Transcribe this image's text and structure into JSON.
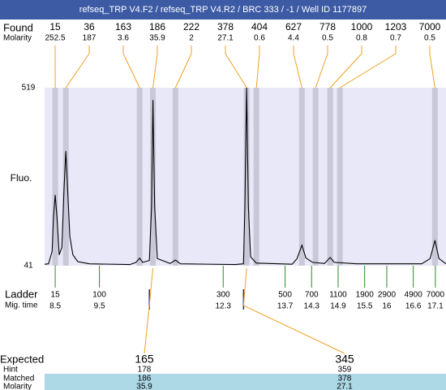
{
  "chart_data": {
    "type": "electropherogram",
    "title": "refseq_TRP V4.F2 / refseq_TRP V4.R2 / BRC 333 / -1 / Well ID 1177897",
    "y_label": "Fluo.",
    "ylim": [
      41,
      519
    ],
    "yticks": [
      41,
      519
    ],
    "xlim": [
      8.26,
      17.34
    ],
    "trace": {
      "x": [
        8.26,
        8.35,
        8.43,
        8.46,
        8.5,
        8.54,
        8.59,
        8.65,
        8.7,
        8.74,
        8.78,
        8.83,
        8.9,
        9.01,
        9.27,
        10.19,
        10.33,
        10.41,
        10.48,
        10.63,
        10.68,
        10.71,
        10.75,
        10.81,
        11.1,
        11.22,
        11.33,
        12.57,
        12.76,
        12.79,
        12.83,
        12.87,
        12.92,
        13.05,
        13.86,
        13.97,
        14.08,
        14.17,
        14.32,
        14.59,
        14.72,
        14.81,
        15.32,
        16.79,
        16.98,
        17.09,
        17.18,
        17.34
      ],
      "values": [
        45,
        46,
        80,
        170,
        231,
        170,
        70,
        90,
        250,
        349,
        250,
        120,
        70,
        52,
        46,
        44,
        50,
        61,
        50,
        55,
        200,
        486,
        200,
        60,
        47,
        56,
        46,
        44,
        46,
        200,
        519,
        200,
        65,
        48,
        45,
        60,
        96,
        62,
        50,
        47,
        63,
        50,
        46,
        46,
        60,
        109,
        60,
        46
      ]
    },
    "found": {
      "label": "Found",
      "molarity_label": "Molarity",
      "peaks": [
        {
          "size": 15,
          "molarity": 252.5,
          "x": 8.5
        },
        {
          "size": 36,
          "molarity": 187,
          "x": 8.74
        },
        {
          "size": 163,
          "molarity": 3.6,
          "x": 10.41
        },
        {
          "size": 186,
          "molarity": 35.9,
          "x": 10.71
        },
        {
          "size": 222,
          "molarity": 2,
          "x": 11.22
        },
        {
          "size": 378,
          "molarity": 27.1,
          "x": 12.83
        },
        {
          "size": 404,
          "molarity": 0.6,
          "x": 13.05
        },
        {
          "size": 627,
          "molarity": 4.4,
          "x": 14.08
        },
        {
          "size": 778,
          "molarity": 0.5,
          "x": 14.39
        },
        {
          "size": 1000,
          "molarity": 0.8,
          "x": 14.72
        },
        {
          "size": 1203,
          "molarity": 0.7,
          "x": 14.94
        },
        {
          "size": 7000,
          "molarity": 0.5,
          "x": 17.09
        }
      ]
    },
    "ladder": {
      "label": "Ladder",
      "time_label": "Mig. time",
      "sizes": [
        15,
        100,
        300,
        500,
        700,
        1100,
        1900,
        2900,
        4900,
        7000
      ],
      "times": [
        8.5,
        9.5,
        12.3,
        13.7,
        14.3,
        14.9,
        15.5,
        16,
        16.6,
        17.1
      ]
    },
    "expected": {
      "labels": [
        "Expected",
        "Hint",
        "Matched",
        "Molarity"
      ],
      "items": [
        {
          "expected": 165,
          "hint": 178,
          "matched": 186,
          "molarity": 35.9,
          "x": 10.63
        },
        {
          "expected": 345,
          "hint": 359,
          "matched": 378,
          "molarity": 27.1,
          "x": 12.76
        }
      ]
    }
  }
}
